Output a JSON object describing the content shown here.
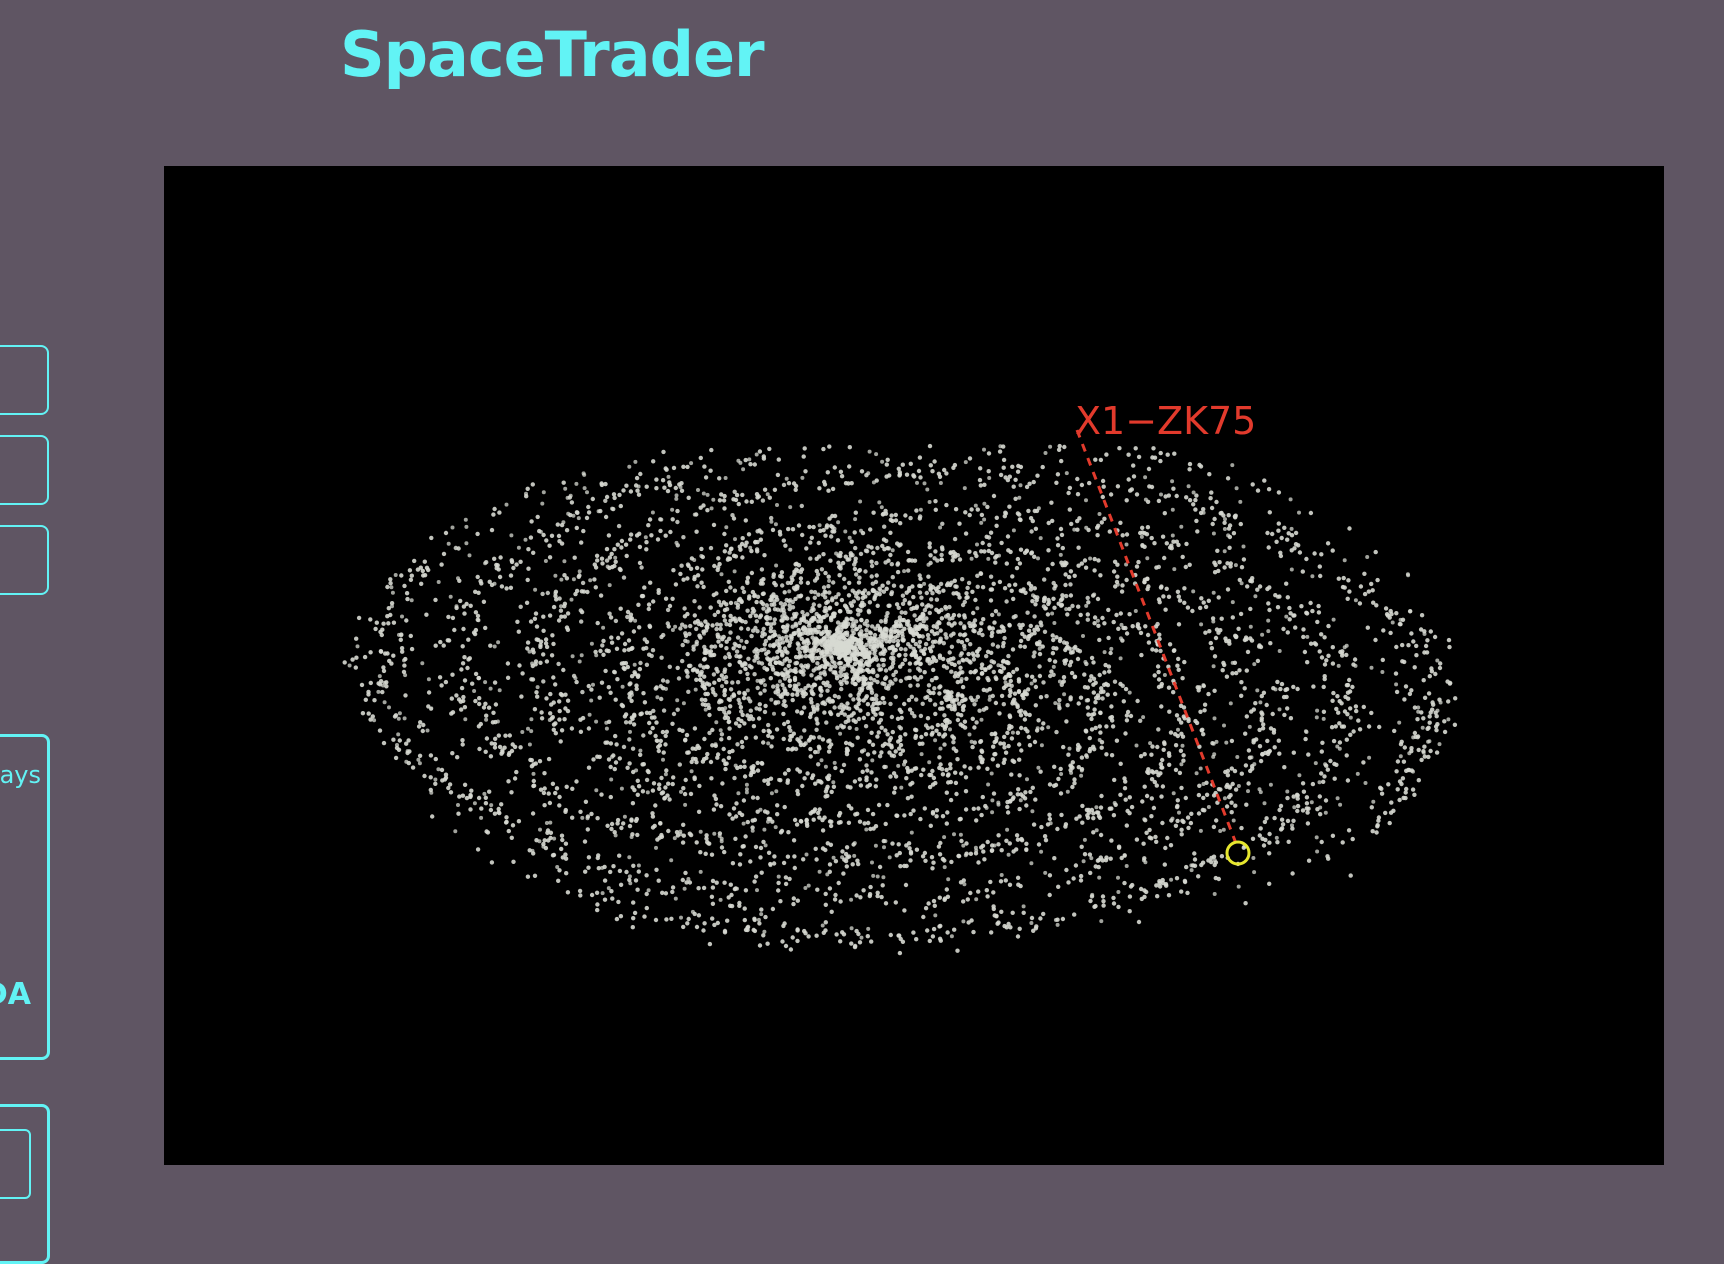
{
  "app": {
    "title": "SpaceTrader"
  },
  "sidebar": {
    "panel_fragment_top": "ays",
    "panel_fragment_bottom": "DA"
  },
  "galaxy_map": {
    "selected_system": {
      "label": "X1−ZK75"
    },
    "colors": {
      "background": "#000000",
      "star": "#d7d9d2",
      "marker": "#e6e62e",
      "label": "#e23a2c",
      "leader_line": "#e23a2c",
      "page_background": "#5f5563",
      "accent": "#62f3f5"
    }
  }
}
